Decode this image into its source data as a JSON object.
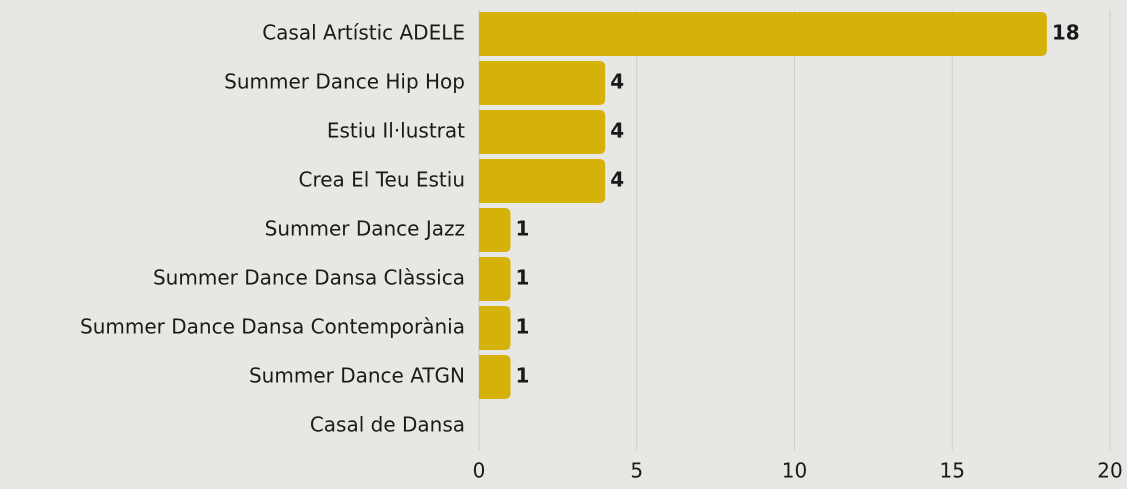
{
  "chart_data": {
    "type": "bar",
    "orientation": "horizontal",
    "categories": [
      "Casal Artístic ADELE",
      "Summer Dance Hip Hop",
      "Estiu Il·lustrat",
      "Crea El Teu Estiu",
      "Summer Dance Jazz",
      "Summer Dance Dansa Clàssica",
      "Summer Dance Dansa Contemporània",
      "Summer Dance ATGN",
      "Casal de Dansa"
    ],
    "values": [
      18,
      4,
      4,
      4,
      1,
      1,
      1,
      1,
      null
    ],
    "color": "#d5b20a",
    "xlim": [
      0,
      20
    ],
    "xticks": [
      0,
      5,
      10,
      15,
      20
    ],
    "grid": true
  }
}
